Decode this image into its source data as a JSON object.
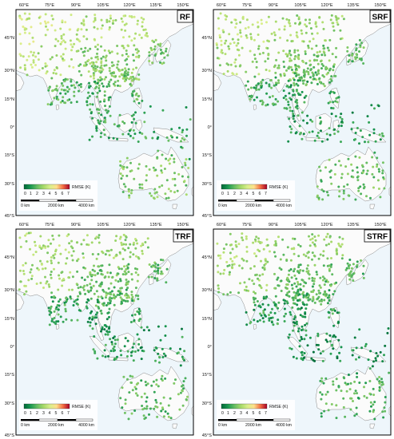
{
  "figure": {
    "panels": [
      {
        "id": "rf",
        "title": "RF"
      },
      {
        "id": "srf",
        "title": "SRF"
      },
      {
        "id": "trf",
        "title": "TRF"
      },
      {
        "id": "strf",
        "title": "STRF"
      }
    ],
    "lon_ticks": [
      "60°E",
      "75°E",
      "90°E",
      "105°E",
      "120°E",
      "135°E",
      "150°E"
    ],
    "lat_ticks": [
      "45°N",
      "30°N",
      "15°N",
      "0°",
      "15°S",
      "30°S",
      "45°S"
    ],
    "colorbar": {
      "label": "RMSE (K)",
      "ticks": [
        "0",
        "1",
        "2",
        "3",
        "4",
        "5",
        "6",
        "7"
      ],
      "colors": [
        "#006837",
        "#1a9850",
        "#66bd63",
        "#a6d96a",
        "#d9ef8b",
        "#fee08b",
        "#f46d43",
        "#a50026"
      ]
    },
    "scalebar": {
      "labels": [
        "0 km",
        "2000 km",
        "4000 km"
      ]
    },
    "map_colors": {
      "ocean": "#eef6fb",
      "land": "#fbfbfb",
      "coast": "#8a8a8a"
    }
  }
}
